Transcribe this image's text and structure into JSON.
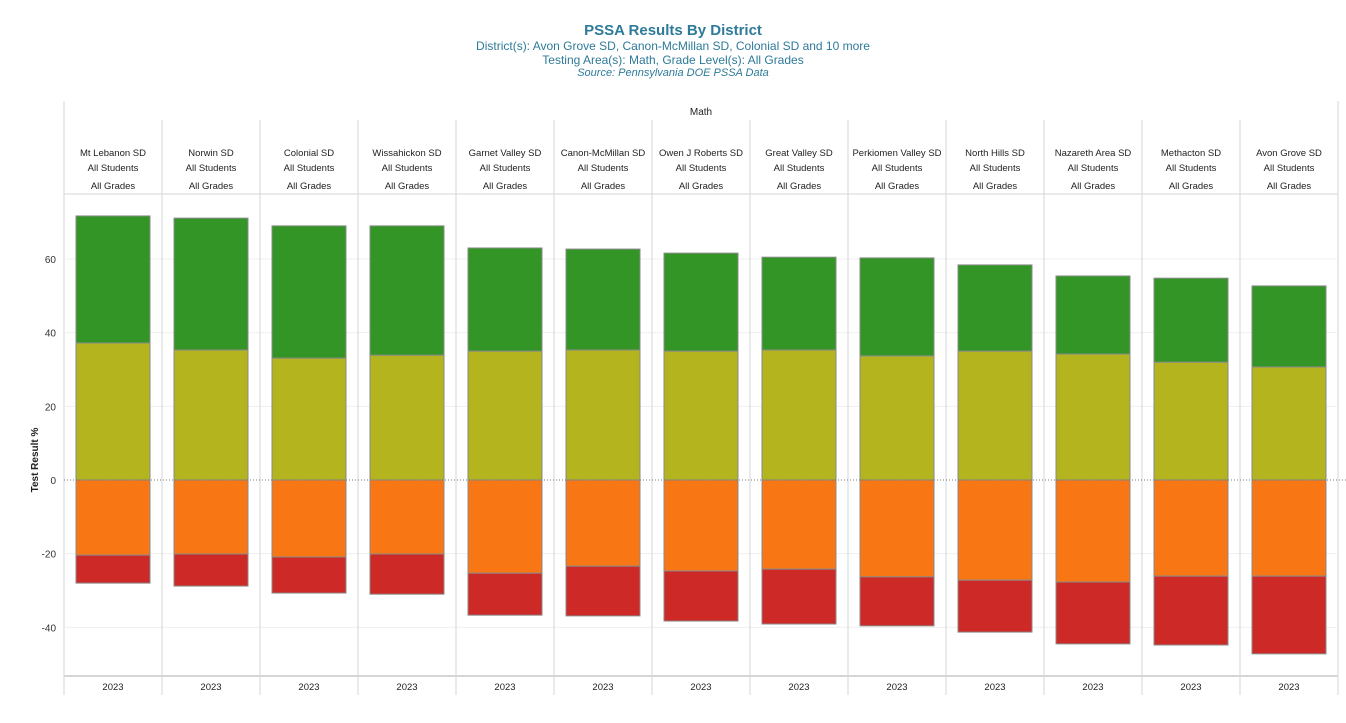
{
  "header": {
    "title": "PSSA Results By District",
    "districts_line": "District(s): Avon Grove SD, Canon-McMillan SD, Colonial SD and 10 more",
    "testing_line": "Testing Area(s): Math, Grade Level(s): All Grades",
    "source_line": "Source: Pennsylvania DOE PSSA Data"
  },
  "chart_data": {
    "type": "bar",
    "stacked": true,
    "diverging": true,
    "column_header": "Math",
    "ylabel": "Test Result %",
    "ylim": [
      -53,
      75
    ],
    "yticks": [
      60,
      40,
      20,
      0,
      -20,
      -40
    ],
    "grid": true,
    "categories": [
      {
        "district": "Mt Lebanon SD",
        "group": "All Students",
        "grade": "All Grades",
        "year": "2023"
      },
      {
        "district": "Norwin SD",
        "group": "All Students",
        "grade": "All Grades",
        "year": "2023"
      },
      {
        "district": "Colonial SD",
        "group": "All Students",
        "grade": "All Grades",
        "year": "2023"
      },
      {
        "district": "Wissahickon SD",
        "group": "All Students",
        "grade": "All Grades",
        "year": "2023"
      },
      {
        "district": "Garnet Valley SD",
        "group": "All Students",
        "grade": "All Grades",
        "year": "2023"
      },
      {
        "district": "Canon-McMillan SD",
        "group": "All Students",
        "grade": "All Grades",
        "year": "2023"
      },
      {
        "district": "Owen J Roberts SD",
        "group": "All Students",
        "grade": "All Grades",
        "year": "2023"
      },
      {
        "district": "Great Valley SD",
        "group": "All Students",
        "grade": "All Grades",
        "year": "2023"
      },
      {
        "district": "Perkiomen Valley SD",
        "group": "All Students",
        "grade": "All Grades",
        "year": "2023"
      },
      {
        "district": "North Hills SD",
        "group": "All Students",
        "grade": "All Grades",
        "year": "2023"
      },
      {
        "district": "Nazareth Area SD",
        "group": "All Students",
        "grade": "All Grades",
        "year": "2023"
      },
      {
        "district": "Methacton SD",
        "group": "All Students",
        "grade": "All Grades",
        "year": "2023"
      },
      {
        "district": "Avon Grove SD",
        "group": "All Students",
        "grade": "All Grades",
        "year": "2023"
      }
    ],
    "series": [
      {
        "color": "#b3b41e",
        "values": [
          37.2,
          35.3,
          33.1,
          33.9,
          35.0,
          35.3,
          35.0,
          35.3,
          33.7,
          35.0,
          34.2,
          32.0,
          30.7
        ]
      },
      {
        "color": "#339525",
        "values": [
          34.5,
          35.8,
          35.9,
          35.1,
          28.0,
          27.4,
          26.6,
          25.2,
          26.6,
          23.4,
          21.2,
          22.8,
          22.0
        ]
      },
      {
        "color": "#f87714",
        "values": [
          -20.4,
          -20.1,
          -20.9,
          -20.1,
          -25.3,
          -23.4,
          -24.7,
          -24.2,
          -26.3,
          -27.2,
          -27.7,
          -26.1,
          -26.1
        ]
      },
      {
        "color": "#cd2a27",
        "values": [
          -7.6,
          -8.7,
          -9.8,
          -10.9,
          -11.4,
          -13.5,
          -13.6,
          -14.9,
          -13.3,
          -14.1,
          -16.8,
          -18.7,
          -21.1
        ]
      }
    ]
  }
}
